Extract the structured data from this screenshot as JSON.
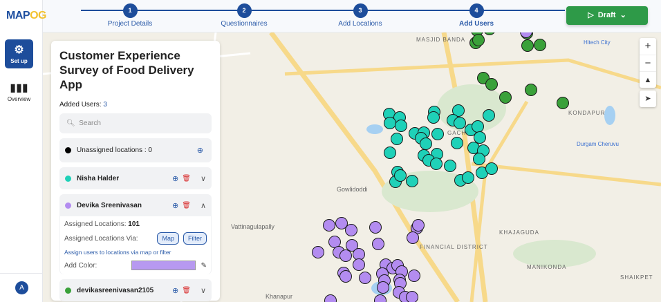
{
  "sidebar": {
    "logo_main": "MAP",
    "logo_accent": "OG",
    "items": [
      {
        "label": "Set up",
        "icon": "gear-icon",
        "active": true
      },
      {
        "label": "Overview",
        "icon": "bar-chart-icon"
      }
    ],
    "avatar": "A"
  },
  "stepper": {
    "steps": [
      {
        "num": "1",
        "label": "Project Details"
      },
      {
        "num": "2",
        "label": "Questionnaires"
      },
      {
        "num": "3",
        "label": "Add Locations"
      },
      {
        "num": "4",
        "label": "Add Users",
        "current": true
      }
    ]
  },
  "draft": {
    "label": "Draft",
    "icon": "play-icon"
  },
  "panel": {
    "title": "Customer Experience Survey of Food Delivery App",
    "added_label": "Added Users:",
    "added_count": "3",
    "search_placeholder": "Search",
    "unassigned": "Unassigned locations : 0",
    "users": [
      {
        "name": "Nisha Halder",
        "color": "#1fd1b8",
        "expanded": false
      },
      {
        "name": "Devika Sreenivasan",
        "color": "#b38cf0",
        "expanded": true,
        "assigned_label": "Assigned Locations:",
        "assigned_count": "101",
        "via_label": "Assigned Locations Via:",
        "via_map": "Map",
        "via_filter": "Filter",
        "hint": "Assign users to locations via map or filter",
        "color_label": "Add Color:",
        "swatch": "#b799f0"
      },
      {
        "name": "devikasreenivasan2105",
        "color": "#3aa13a",
        "expanded": false
      }
    ]
  },
  "map": {
    "controls": [
      "zoom-in",
      "zoom-out",
      "compass",
      "locate"
    ],
    "labels": [
      "MASJID BANDA",
      "KONDAPUR",
      "GACHI",
      "Gowlidoddi",
      "Vattinagulapally",
      "FINANCIAL DISTRICT",
      "KHAJAGUDA",
      "MANIKONDA",
      "Khanapur",
      "SHAIKPET"
    ],
    "poi": [
      "Hitech City",
      "Durgam Cheruvu"
    ],
    "marker_colors": {
      "green": "#3aa13a",
      "teal": "#1fd1b8",
      "purple": "#b38cf0"
    }
  }
}
